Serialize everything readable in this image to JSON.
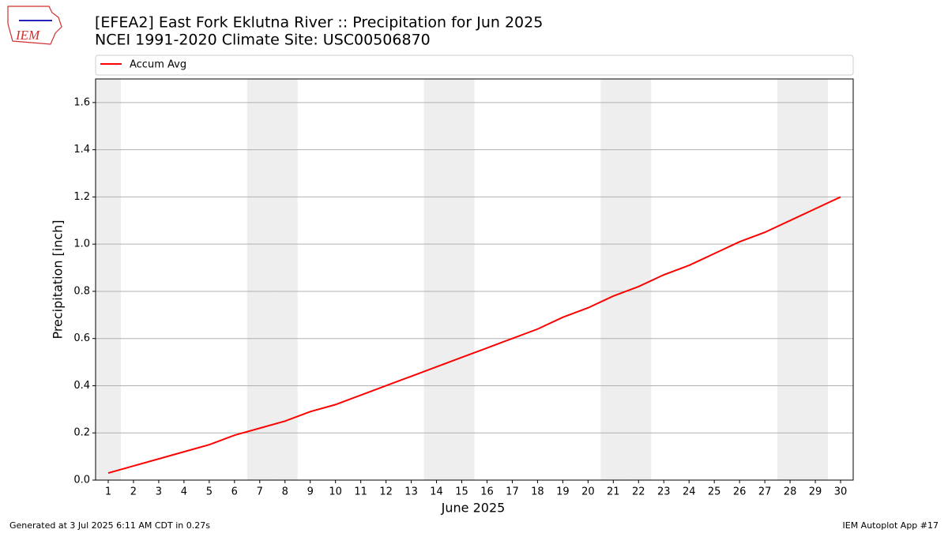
{
  "chart_data": {
    "type": "line",
    "title": [
      "[EFEA2] East Fork Eklutna River :: Precipitation for Jun 2025",
      "NCEI 1991-2020 Climate Site: USC00506870"
    ],
    "xlabel": "June 2025",
    "ylabel": "Precipitation [inch]",
    "x": [
      1,
      2,
      3,
      4,
      5,
      6,
      7,
      8,
      9,
      10,
      11,
      12,
      13,
      14,
      15,
      16,
      17,
      18,
      19,
      20,
      21,
      22,
      23,
      24,
      25,
      26,
      27,
      28,
      29,
      30
    ],
    "series": [
      {
        "name": "Accum Avg",
        "color": "#ff0000",
        "values": [
          0.03,
          0.06,
          0.09,
          0.12,
          0.15,
          0.19,
          0.22,
          0.25,
          0.29,
          0.32,
          0.36,
          0.4,
          0.44,
          0.48,
          0.52,
          0.56,
          0.6,
          0.64,
          0.69,
          0.73,
          0.78,
          0.82,
          0.87,
          0.91,
          0.96,
          1.01,
          1.05,
          1.1,
          1.15,
          1.2
        ]
      }
    ],
    "xlim": [
      0.5,
      30.5
    ],
    "xticks": [
      1,
      2,
      3,
      4,
      5,
      6,
      7,
      8,
      9,
      10,
      11,
      12,
      13,
      14,
      15,
      16,
      17,
      18,
      19,
      20,
      21,
      22,
      23,
      24,
      25,
      26,
      27,
      28,
      29,
      30
    ],
    "ylim": [
      0,
      1.7
    ],
    "yticks": [
      {
        "value": 0,
        "label": "0.0"
      },
      {
        "value": 0.2,
        "label": "0.2"
      },
      {
        "value": 0.4,
        "label": "0.4"
      },
      {
        "value": 0.6,
        "label": "0.6"
      },
      {
        "value": 0.8,
        "label": "0.8"
      },
      {
        "value": 1,
        "label": "1.0"
      },
      {
        "value": 1.2,
        "label": "1.2"
      },
      {
        "value": 1.4,
        "label": "1.4"
      },
      {
        "value": 1.6,
        "label": "1.6"
      }
    ],
    "grid": true,
    "shade": [
      1,
      7,
      8,
      14,
      15,
      21,
      22,
      28,
      29
    ],
    "shade_color": "#eeeeee",
    "legend": "top"
  },
  "logo": "IEM",
  "footer": {
    "left": "Generated at 3 Jul 2025 6:11 AM CDT in 0.27s",
    "right": "IEM Autoplot App #17"
  }
}
